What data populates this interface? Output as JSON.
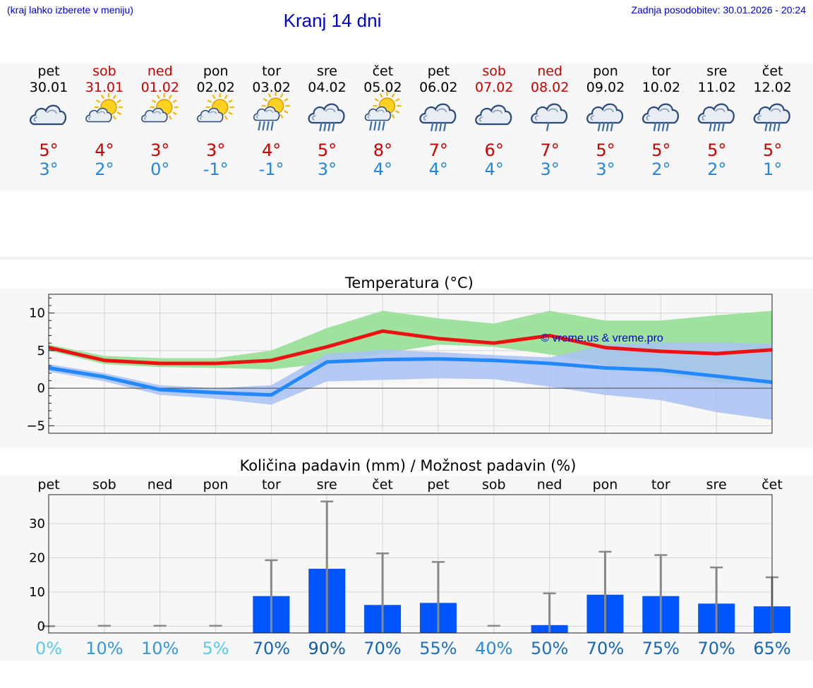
{
  "header": {
    "location_note": "(kraj lahko izberete v meniju)",
    "title": "Kranj 14 dni",
    "updated": "Zadnja posodobitev: 30.01.2026 - 20:24"
  },
  "colors": {
    "weekday": "#000000",
    "weekend": "#cc0000",
    "max": "#cc0000",
    "min": "#2288dd",
    "max_line": "#ee1111",
    "min_line": "#2288ff",
    "max_band": "#9fe29f",
    "min_band": "#a9c1f5",
    "overlap": "#6fbfa6",
    "bar": "#0055ff",
    "whisker": "#888888"
  },
  "days": [
    {
      "name": "pet",
      "date": "30.01",
      "weekend": false,
      "icon": "cloudy-icon",
      "max": "5°",
      "min": "3°"
    },
    {
      "name": "sob",
      "date": "31.01",
      "weekend": true,
      "icon": "sun-cloud-icon",
      "max": "4°",
      "min": "2°"
    },
    {
      "name": "ned",
      "date": "01.02",
      "weekend": true,
      "icon": "sun-cloud-icon",
      "max": "3°",
      "min": "0°"
    },
    {
      "name": "pon",
      "date": "02.02",
      "weekend": false,
      "icon": "sun-cloud-icon",
      "max": "3°",
      "min": "-1°"
    },
    {
      "name": "tor",
      "date": "03.02",
      "weekend": false,
      "icon": "sun-cloud-rain-icon",
      "max": "4°",
      "min": "-1°"
    },
    {
      "name": "sre",
      "date": "04.02",
      "weekend": false,
      "icon": "rain-cloud-icon",
      "max": "5°",
      "min": "3°"
    },
    {
      "name": "čet",
      "date": "05.02",
      "weekend": false,
      "icon": "sun-cloud-rain-icon",
      "max": "8°",
      "min": "4°"
    },
    {
      "name": "pet",
      "date": "06.02",
      "weekend": false,
      "icon": "rain-cloud-icon",
      "max": "7°",
      "min": "4°"
    },
    {
      "name": "sob",
      "date": "07.02",
      "weekend": true,
      "icon": "cloudy-icon",
      "max": "6°",
      "min": "4°"
    },
    {
      "name": "ned",
      "date": "08.02",
      "weekend": true,
      "icon": "light-rain-cloud-icon",
      "max": "7°",
      "min": "3°"
    },
    {
      "name": "pon",
      "date": "09.02",
      "weekend": false,
      "icon": "rain-cloud-icon",
      "max": "5°",
      "min": "3°"
    },
    {
      "name": "tor",
      "date": "10.02",
      "weekend": false,
      "icon": "rain-cloud-icon",
      "max": "5°",
      "min": "2°"
    },
    {
      "name": "sre",
      "date": "11.02",
      "weekend": false,
      "icon": "rain-cloud-icon",
      "max": "5°",
      "min": "2°"
    },
    {
      "name": "čet",
      "date": "12.02",
      "weekend": false,
      "icon": "rain-cloud-icon",
      "max": "5°",
      "min": "1°"
    }
  ],
  "chart_data": [
    {
      "type": "line",
      "title": "Temperatura (°C)",
      "watermark": "© vreme.us & vreme.pro",
      "ylim": [
        -6,
        12.5
      ],
      "yticks": [
        "−5",
        "0",
        "5",
        "10"
      ],
      "yticks_values": [
        -5,
        0,
        5,
        10
      ],
      "grid": true,
      "x": [
        0,
        1,
        2,
        3,
        4,
        5,
        6,
        7,
        8,
        9,
        10,
        11,
        12,
        13
      ],
      "series": [
        {
          "name": "max",
          "values": [
            5.4,
            3.7,
            3.3,
            3.3,
            3.7,
            5.5,
            7.6,
            6.6,
            6.0,
            7.0,
            5.4,
            4.9,
            4.6,
            5.1
          ]
        },
        {
          "name": "max_range",
          "low": [
            5.0,
            3.2,
            2.8,
            2.7,
            2.5,
            3.3,
            4.6,
            5.8,
            5.5,
            4.5,
            3.1,
            1.8,
            0.7,
            0.4
          ],
          "high": [
            5.8,
            4.3,
            4.0,
            4.0,
            5.0,
            8.0,
            10.3,
            9.3,
            8.6,
            10.3,
            9.0,
            9.0,
            9.7,
            10.3
          ]
        },
        {
          "name": "min",
          "values": [
            2.7,
            1.5,
            -0.2,
            -0.6,
            -0.9,
            3.5,
            3.8,
            3.9,
            3.7,
            3.3,
            2.7,
            2.4,
            1.6,
            0.8
          ]
        },
        {
          "name": "min_range",
          "low": [
            2.2,
            0.9,
            -0.9,
            -1.4,
            -2.2,
            0.9,
            1.1,
            1.3,
            1.2,
            0.2,
            -0.9,
            -1.6,
            -3.2,
            -4.2
          ],
          "high": [
            3.2,
            2.0,
            0.4,
            0.0,
            0.4,
            4.6,
            5.1,
            4.8,
            4.4,
            4.1,
            5.8,
            6.1,
            6.1,
            5.9
          ]
        }
      ]
    },
    {
      "type": "bar",
      "title": "Količina padavin (mm) / Možnost padavin (%)",
      "categories": [
        "pet",
        "sob",
        "ned",
        "pon",
        "tor",
        "sre",
        "čet",
        "pet",
        "sob",
        "ned",
        "pon",
        "tor",
        "sre",
        "čet"
      ],
      "values": [
        0,
        0,
        0,
        0,
        8.8,
        16.8,
        6.2,
        6.8,
        0,
        0.3,
        9.2,
        8.8,
        6.6,
        5.8
      ],
      "whisker_high": [
        0,
        0.1,
        0.1,
        0.1,
        19.3,
        36.5,
        21.3,
        18.8,
        0.1,
        9.6,
        21.8,
        20.8,
        17.2,
        14.3
      ],
      "probability": [
        "0%",
        "10%",
        "10%",
        "5%",
        "70%",
        "90%",
        "70%",
        "55%",
        "40%",
        "50%",
        "70%",
        "75%",
        "70%",
        "65%"
      ],
      "probability_colors": [
        "#55ccee",
        "#3399dd",
        "#3399dd",
        "#55ccee",
        "#1166bb",
        "#0e5aa8",
        "#1166bb",
        "#1b70c2",
        "#2b8ad5",
        "#1b70c2",
        "#1166bb",
        "#1166bb",
        "#1166bb",
        "#1166bb"
      ],
      "ylim": [
        -2,
        38.5
      ],
      "yticks": [
        "0",
        "10",
        "20",
        "30"
      ],
      "yticks_values": [
        0,
        10,
        20,
        30
      ],
      "grid": true
    }
  ]
}
